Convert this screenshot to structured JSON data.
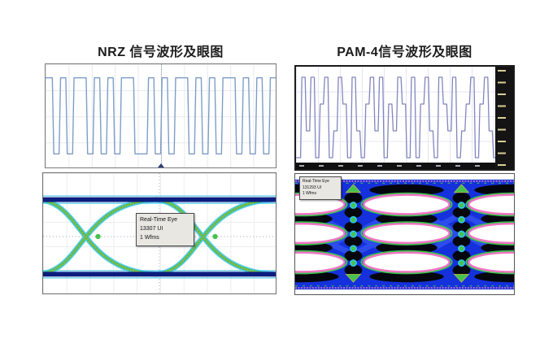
{
  "page": {
    "background": "#ffffff"
  },
  "panels": {
    "nrz": {
      "title": "NRZ 信号波形及眼图",
      "eye_tooltip": {
        "line1": "Real-Time Eye",
        "line2": "13307 UI",
        "line3": "1 Wfms"
      }
    },
    "pam4": {
      "title": "PAM-4信号波形及眼图",
      "eye_tooltip": {
        "line1": "Real-Time Eye",
        "line2": "131293 UI",
        "line3": "1 Wfms"
      }
    }
  },
  "colors": {
    "nrz_trace": "#7e9dc7",
    "nrz_eye_rail_navy": "#0c1d7e",
    "nrz_eye_cyan": "#3cc5ec",
    "nrz_eye_green": "#4cc04e",
    "nrz_eye_speckle_olive": "#b9b441",
    "pam4_trace": "#8286bd",
    "pam4_eye_blue": "#1531dc",
    "pam4_eye_black": "#04060e",
    "pam4_eye_pink": "#f174c4",
    "pam4_eye_green": "#3ec34f",
    "tooltip_bg": "#e9e7e2"
  },
  "chart_data": [
    {
      "type": "line",
      "name": "nrz-waveform",
      "signal": "NRZ",
      "levels": 2,
      "description": "Two-level square-wave serial bit stream on oscilloscope grid with dotted center trigger line",
      "bits": [
        1,
        0,
        1,
        0,
        1,
        1,
        0,
        1,
        0,
        1,
        0,
        1,
        1,
        0,
        0,
        1,
        0,
        1,
        0,
        1,
        1,
        0,
        1,
        0,
        1,
        0,
        1,
        1,
        0,
        1,
        0,
        1,
        0,
        1
      ],
      "grid": true
    },
    {
      "type": "heatmap",
      "name": "nrz-eye",
      "signal": "NRZ",
      "eye_rows": 1,
      "eye_columns": 2,
      "description": "Real-time NRZ eye diagram: navy top/bottom rails, cyan-green X transitions with olive hot-spot speckle, two crossings visible",
      "annotation": [
        "Real-Time Eye",
        "13307 UI",
        "1 Wfms"
      ]
    },
    {
      "type": "line",
      "name": "pam4-waveform",
      "signal": "PAM-4",
      "levels": 4,
      "description": "Four-level PAM-4 symbol stream, purple trace, black scope side/bottom scale strips with tick labels",
      "symbols": [
        0,
        3,
        1,
        3,
        0,
        2,
        3,
        0,
        1,
        3,
        2,
        0,
        3,
        1,
        0,
        2,
        3,
        1,
        3,
        0,
        2,
        1,
        3,
        2,
        0,
        3,
        0,
        2,
        3,
        1,
        0,
        3,
        2,
        1,
        3,
        0,
        1,
        2,
        3,
        0,
        2,
        3,
        1,
        0
      ],
      "grid": true
    },
    {
      "type": "heatmap",
      "name": "pam4-eye",
      "signal": "PAM-4",
      "eye_rows": 3,
      "eye_columns": 2,
      "description": "Real-time PAM-4 eye diagram: dense blue/black density map, three stacked white eye openings per column outlined pink and green, green transition dot chains at crossings",
      "annotation": [
        "Real-Time Eye",
        "131293 UI",
        "1 Wfms"
      ]
    }
  ]
}
